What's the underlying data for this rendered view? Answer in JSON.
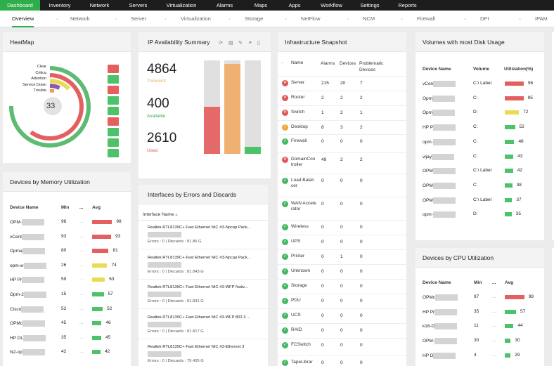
{
  "topnav": [
    "Dashboard",
    "Inventory",
    "Network",
    "Servers",
    "Virtualization",
    "Alarms",
    "Maps",
    "Apps",
    "Workflow",
    "Settings",
    "Reports"
  ],
  "subnav": [
    "Overview",
    "Network",
    "Server",
    "Virtualization",
    "Storage",
    "NetFlow",
    "NCM",
    "Firewall",
    "DPI",
    "IPAM"
  ],
  "heatmap": {
    "title": "HeatMap",
    "center": "33",
    "legend": [
      "Clear",
      "Critica",
      "Attention",
      "Service Down",
      "Trouble"
    ],
    "squares": [
      "red",
      "green",
      "red",
      "green",
      "green",
      "red",
      "green",
      "green",
      "green"
    ]
  },
  "ip": {
    "title": "IP Availability Summary",
    "transient_value": "4864",
    "transient_label": "Transient",
    "available_value": "400",
    "available_label": "Available",
    "used_value": "2610",
    "used_label": "Used"
  },
  "infra": {
    "title": "Infrastructure Snapshot",
    "headers": [
      "Name",
      "Alarms",
      "Devices",
      "Problematic Devices"
    ],
    "rows": [
      {
        "icon": "red",
        "name": "Server",
        "alarms": "215",
        "devices": "20",
        "problematic": "7"
      },
      {
        "icon": "red",
        "name": "Router",
        "alarms": "2",
        "devices": "2",
        "problematic": "2"
      },
      {
        "icon": "red",
        "name": "Switch",
        "alarms": "1",
        "devices": "2",
        "problematic": "1"
      },
      {
        "icon": "orange",
        "name": "Desktop",
        "alarms": "8",
        "devices": "3",
        "problematic": "2"
      },
      {
        "icon": "green",
        "name": "Firewall",
        "alarms": "0",
        "devices": "0",
        "problematic": "0"
      },
      {
        "icon": "red",
        "name": "DomainController",
        "alarms": "49",
        "devices": "2",
        "problematic": "2"
      },
      {
        "icon": "green",
        "name": "Load Balancer",
        "alarms": "0",
        "devices": "0",
        "problematic": "0"
      },
      {
        "icon": "green",
        "name": "WAN Accelerator",
        "alarms": "0",
        "devices": "0",
        "problematic": "0"
      },
      {
        "icon": "green",
        "name": "Wireless",
        "alarms": "0",
        "devices": "0",
        "problematic": "0"
      },
      {
        "icon": "green",
        "name": "UPS",
        "alarms": "0",
        "devices": "0",
        "problematic": "0"
      },
      {
        "icon": "green",
        "name": "Printer",
        "alarms": "0",
        "devices": "1",
        "problematic": "0"
      },
      {
        "icon": "green",
        "name": "Unknown",
        "alarms": "0",
        "devices": "0",
        "problematic": "0"
      },
      {
        "icon": "green",
        "name": "Storage",
        "alarms": "0",
        "devices": "0",
        "problematic": "0"
      },
      {
        "icon": "green",
        "name": "PDU",
        "alarms": "0",
        "devices": "0",
        "problematic": "0"
      },
      {
        "icon": "green",
        "name": "UCS",
        "alarms": "0",
        "devices": "0",
        "problematic": "0"
      },
      {
        "icon": "green",
        "name": "RAID",
        "alarms": "0",
        "devices": "0",
        "problematic": "0"
      },
      {
        "icon": "green",
        "name": "FCSwitch",
        "alarms": "0",
        "devices": "0",
        "problematic": "0"
      },
      {
        "icon": "green",
        "name": "TapeLibrar",
        "alarms": "0",
        "devices": "0",
        "problematic": "0"
      }
    ]
  },
  "disk": {
    "title": "Volumes with most Disk Usage",
    "headers": [
      "Device Name",
      "Volume",
      "Utilization(%)"
    ],
    "rows": [
      {
        "name": "vCen",
        "volume": "C:\\ Label",
        "value": 96,
        "color": "red"
      },
      {
        "name": "Opm",
        "volume": "C:",
        "value": 95,
        "color": "red"
      },
      {
        "name": "Opm",
        "volume": "D:",
        "value": 72,
        "color": "yellow"
      },
      {
        "name": "HP P",
        "volume": "C:",
        "value": 52,
        "color": "green"
      },
      {
        "name": "opm-",
        "volume": "C:",
        "value": 48,
        "color": "green"
      },
      {
        "name": "vijay",
        "volume": "C:",
        "value": 43,
        "color": "green"
      },
      {
        "name": "OPM",
        "volume": "C:\\ Label",
        "value": 42,
        "color": "green"
      },
      {
        "name": "OPM",
        "volume": "C:",
        "value": 38,
        "color": "green"
      },
      {
        "name": "OPM",
        "volume": "C:\\ Label",
        "value": 37,
        "color": "green"
      },
      {
        "name": "opm-",
        "volume": "D:",
        "value": 35,
        "color": "green"
      }
    ]
  },
  "memory": {
    "title": "Devices by Memory Utilization",
    "headers": [
      "Device Name",
      "Min",
      "...",
      "Avg"
    ],
    "rows": [
      {
        "name": "OPM-",
        "min": "98",
        "avg": 98,
        "color": "red"
      },
      {
        "name": "vCent",
        "min": "93",
        "avg": 93,
        "color": "red"
      },
      {
        "name": "Opma",
        "min": "80",
        "avg": 81,
        "color": "red"
      },
      {
        "name": "opm-w",
        "min": "26",
        "avg": 74,
        "color": "yellow"
      },
      {
        "name": "HP Pr",
        "min": "59",
        "avg": 63,
        "color": "yellow"
      },
      {
        "name": "Opm-2",
        "min": "15",
        "avg": 57,
        "color": "green"
      },
      {
        "name": "Cisco",
        "min": "52",
        "avg": 52,
        "color": "green"
      },
      {
        "name": "OPMc",
        "min": "45",
        "avg": 46,
        "color": "green"
      },
      {
        "name": "HP DL",
        "min": "35",
        "avg": 45,
        "color": "green"
      },
      {
        "name": "N2-op",
        "min": "42",
        "avg": 42,
        "color": "green"
      }
    ]
  },
  "interfaces": {
    "title": "Interfaces by Errors and Discards",
    "header": "Interface Name",
    "rows": [
      {
        "name": "Realtek RTL8139C+ Fast Ethernet NIC #3-Npcap Pack...",
        "stats": "Errors : 0 | Discards : 81.86 G"
      },
      {
        "name": "Realtek RTL8139C+ Fast Ethernet NIC #3-Npcap Pack...",
        "stats": "Errors : 0 | Discards : 81.843 G"
      },
      {
        "name": "Realtek RTL8139C+ Fast Ethernet NIC #3-WFP Nativ...",
        "stats": "Errors : 0 | Discards : 81.831 G"
      },
      {
        "name": "Realtek RTL8139C+ Fast Ethernet NIC #3-WFP 802.3 ...",
        "stats": "Errors : 0 | Discards : 81.817 G"
      },
      {
        "name": "Realtek RTL8139C+ Fast Ethernet NIC #3-Ethernet 3",
        "stats": "Errors : 0 | Discards : 79.405 G"
      }
    ]
  },
  "cpu": {
    "title": "Devices by CPU Utilization",
    "headers": [
      "Device Name",
      "Min",
      "...",
      "Avg"
    ],
    "rows": [
      {
        "name": "OPMc",
        "min": "97",
        "avg": 99,
        "color": "red"
      },
      {
        "name": "HP Pr",
        "min": "35",
        "avg": 57,
        "color": "green"
      },
      {
        "name": "k16-D",
        "min": "11",
        "avg": 44,
        "color": "green"
      },
      {
        "name": "OPM-",
        "min": "30",
        "avg": 30,
        "color": "green"
      },
      {
        "name": "HP D",
        "min": "4",
        "avg": 29,
        "color": "green"
      }
    ]
  },
  "colors": {
    "accent": "#2eae4a",
    "red": "#e46060",
    "green": "#4ec26b",
    "yellow": "#e8dc55"
  }
}
